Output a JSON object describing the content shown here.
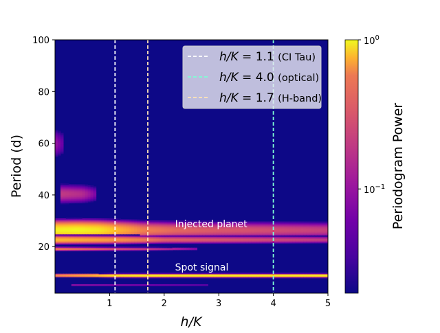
{
  "chart_data": {
    "type": "heatmap",
    "xlabel_var": "h/K",
    "ylabel": "Period (d)",
    "xlim": [
      0.0,
      5.0
    ],
    "ylim": [
      2,
      100
    ],
    "x_ticks": [
      1,
      2,
      3,
      4,
      5
    ],
    "y_ticks": [
      20,
      40,
      60,
      80,
      100
    ],
    "colormap": "plasma",
    "grid": false,
    "colorbar": {
      "label": "Periodogram Power",
      "scale": "log",
      "range": [
        0.02,
        1.0
      ],
      "ticks": [
        {
          "value": 1.0,
          "base": "10",
          "exp": "0"
        },
        {
          "value": 0.1,
          "base": "10",
          "exp": "−1"
        }
      ]
    },
    "vertical_lines": [
      {
        "x": 1.1,
        "color": "#ffffff",
        "value_text": "1.1",
        "note": "(CI Tau)"
      },
      {
        "x": 4.0,
        "color": "#7fffd4",
        "value_text": "4.0",
        "note": "(optical)"
      },
      {
        "x": 1.7,
        "color": "#ffe4b5",
        "value_text": "1.7",
        "note": "(H-band)"
      }
    ],
    "legend_position": "top-right",
    "features": [
      {
        "name": "planet",
        "period_center": 26.5,
        "period_width": 4.8,
        "x_start": 0.0,
        "x_end": 5.0,
        "power_by_x": [
          [
            0.0,
            0.92
          ],
          [
            0.4,
            1.0
          ],
          [
            0.8,
            0.85
          ],
          [
            1.2,
            0.5
          ],
          [
            1.6,
            0.3
          ],
          [
            2.2,
            0.22
          ],
          [
            3.0,
            0.18
          ],
          [
            5.0,
            0.13
          ]
        ]
      },
      {
        "name": "planet-low-tail",
        "period_center": 22.8,
        "period_width": 2.2,
        "x_start": 0.0,
        "x_end": 5.0,
        "power_by_x": [
          [
            0.0,
            0.55
          ],
          [
            1.0,
            0.4
          ],
          [
            2.0,
            0.2
          ],
          [
            5.0,
            0.12
          ]
        ]
      },
      {
        "name": "spot",
        "period_center": 8.9,
        "period_width": 0.9,
        "x_start": 0.0,
        "x_end": 5.0,
        "power_by_x": [
          [
            0.0,
            0.35
          ],
          [
            0.7,
            0.55
          ],
          [
            1.1,
            0.9
          ],
          [
            1.8,
            1.0
          ],
          [
            5.0,
            1.0
          ]
        ]
      },
      {
        "name": "alias-19",
        "period_center": 19.2,
        "period_width": 1.0,
        "x_start": 0.0,
        "x_end": 2.6,
        "power_by_x": [
          [
            0.0,
            0.3
          ],
          [
            1.0,
            0.18
          ],
          [
            2.6,
            0.06
          ]
        ]
      },
      {
        "name": "alias-40",
        "period_center": 40.5,
        "period_width": 6.0,
        "x_start": 0.1,
        "x_end": 0.75,
        "power_by_x": [
          [
            0.1,
            0.12
          ],
          [
            0.5,
            0.1
          ],
          [
            0.75,
            0.05
          ]
        ]
      },
      {
        "name": "alias-5",
        "period_center": 5.2,
        "period_width": 0.5,
        "x_start": 0.3,
        "x_end": 2.8,
        "power_by_x": [
          [
            0.3,
            0.08
          ],
          [
            2.8,
            0.05
          ]
        ]
      },
      {
        "name": "tail-high",
        "period_center": 60.0,
        "period_width": 10.0,
        "x_start": 0.0,
        "x_end": 0.15,
        "power_by_x": [
          [
            0.0,
            0.07
          ],
          [
            0.15,
            0.04
          ]
        ]
      }
    ],
    "annotations": [
      {
        "text": "Injected planet",
        "x": 2.2,
        "y": 27.5
      },
      {
        "text": "Spot signal",
        "x": 2.2,
        "y": 10.8
      }
    ]
  }
}
